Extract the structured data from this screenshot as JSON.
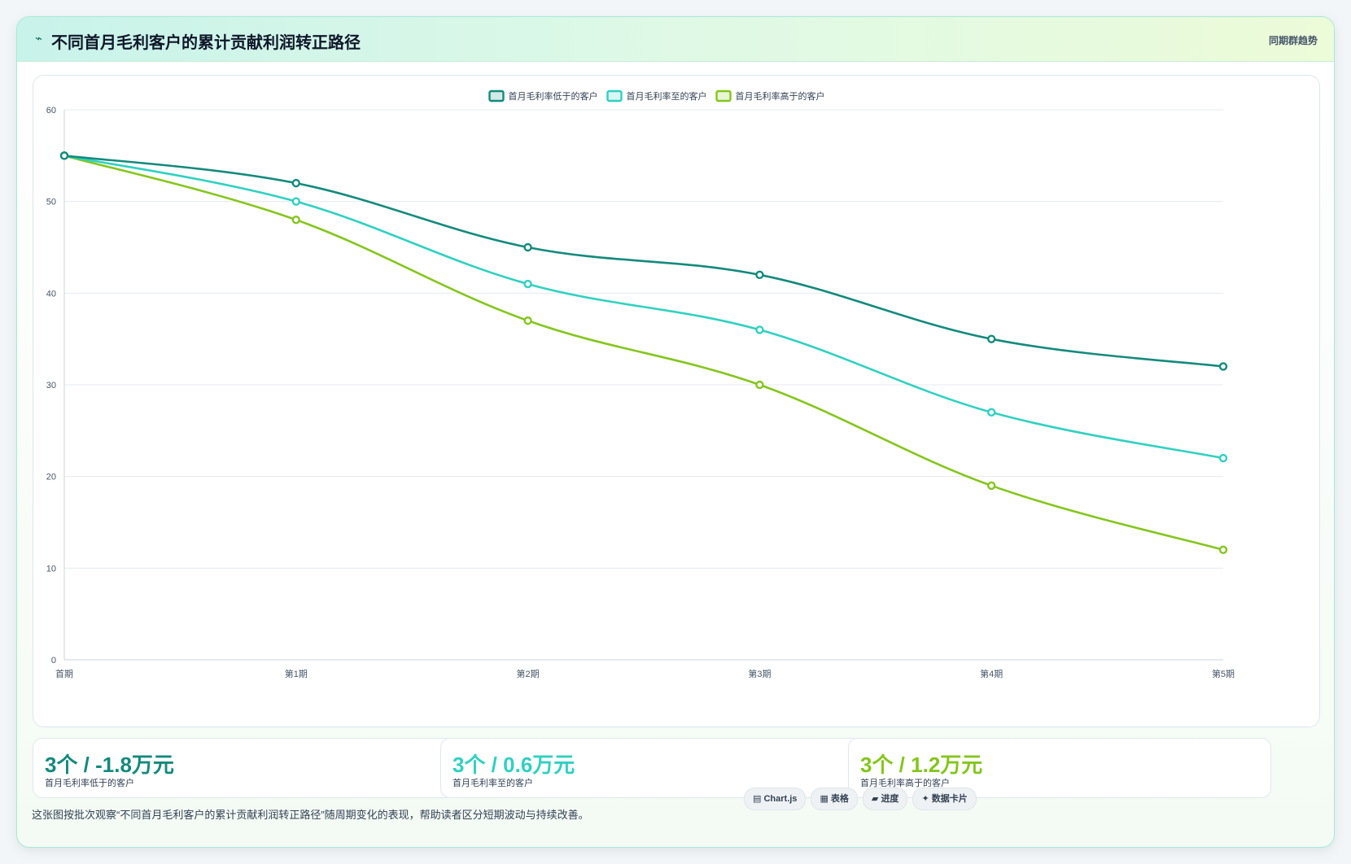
{
  "header": {
    "icon": "⌁",
    "title": "不同首月毛利客户的累计贡献利润转正路径",
    "tag": "同期群趋势"
  },
  "chart_data": {
    "type": "line",
    "categories": [
      "首期",
      "第1期",
      "第2期",
      "第3期",
      "第4期",
      "第5期"
    ],
    "series": [
      {
        "name": "首月毛利率低于的客户",
        "color": "#138a7c",
        "values": [
          55,
          52,
          45,
          42,
          35,
          32
        ]
      },
      {
        "name": "首月毛利率至的客户",
        "color": "#2fd1c1",
        "values": [
          55,
          50,
          41,
          36,
          27,
          22
        ]
      },
      {
        "name": "首月毛利率高于的客户",
        "color": "#84c61c",
        "values": [
          55,
          48,
          37,
          30,
          19,
          12
        ]
      }
    ],
    "ylim": [
      0,
      60
    ],
    "yticks": [
      0,
      10,
      20,
      30,
      40,
      50,
      60
    ],
    "grid": true,
    "legend": "top-center"
  },
  "stats": [
    {
      "value": "3个 / -1.8万元",
      "label": "首月毛利率低于的客户",
      "color": "#138a7c"
    },
    {
      "value": "3个 / 0.6万元",
      "label": "首月毛利率至的客户",
      "color": "#2fd1c1"
    },
    {
      "value": "3个 / 1.2万元",
      "label": "首月毛利率高于的客户",
      "color": "#84c61c"
    }
  ],
  "footer": {
    "note": "这张图按批次观察“不同首月毛利客户的累计贡献利润转正路径”随周期变化的表现，帮助读者区分短期波动与持续改善。",
    "chips": [
      {
        "icon": "▤",
        "label": "Chart.js"
      },
      {
        "icon": "▦",
        "label": "表格"
      },
      {
        "icon": "▰",
        "label": "进度"
      },
      {
        "icon": "✦",
        "label": "数据卡片"
      }
    ]
  }
}
